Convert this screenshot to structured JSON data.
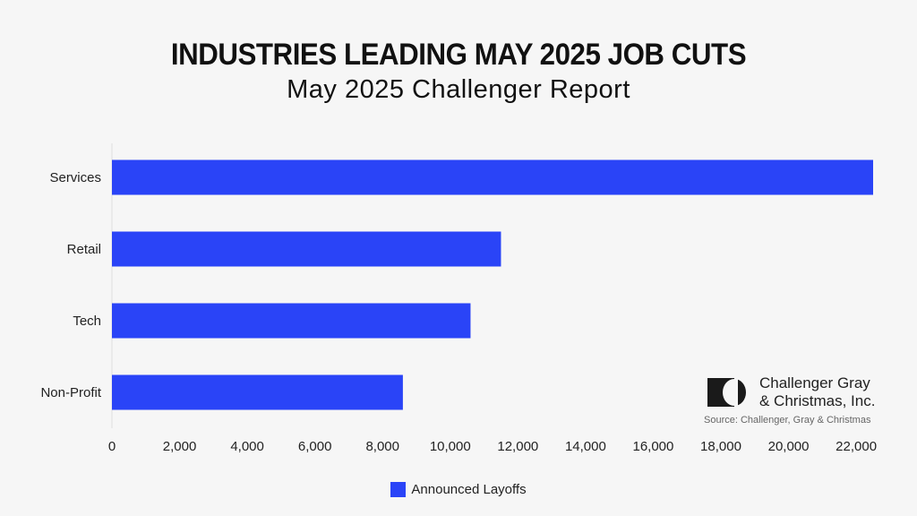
{
  "colors": {
    "bar": "#2a44f7",
    "background": "#f6f6f6",
    "text": "#111111"
  },
  "chart_data": {
    "type": "bar",
    "orientation": "horizontal",
    "title": "INDUSTRIES LEADING MAY 2025 JOB CUTS",
    "subtitle": "May 2025 Challenger Report",
    "categories": [
      "Services",
      "Retail",
      "Tech",
      "Non-Profit"
    ],
    "series": [
      {
        "name": "Announced Layoffs",
        "values": [
          22500,
          11500,
          10600,
          8600
        ]
      }
    ],
    "xlim": [
      0,
      22500
    ],
    "xticks": [
      0,
      2000,
      4000,
      6000,
      8000,
      10000,
      12000,
      14000,
      16000,
      18000,
      20000,
      22000
    ],
    "xtick_labels": [
      "0",
      "2,000",
      "4,000",
      "6,000",
      "8,000",
      "10,000",
      "12,000",
      "14,000",
      "16,000",
      "18,000",
      "20,000",
      "22,000"
    ],
    "grid": false,
    "legend_position": "bottom"
  },
  "logo": {
    "line1": "Challenger Gray",
    "line2": "& Christmas, Inc.",
    "icon": "challenger-logo-icon"
  },
  "source_note": "Source: Challenger, Gray & Christmas"
}
